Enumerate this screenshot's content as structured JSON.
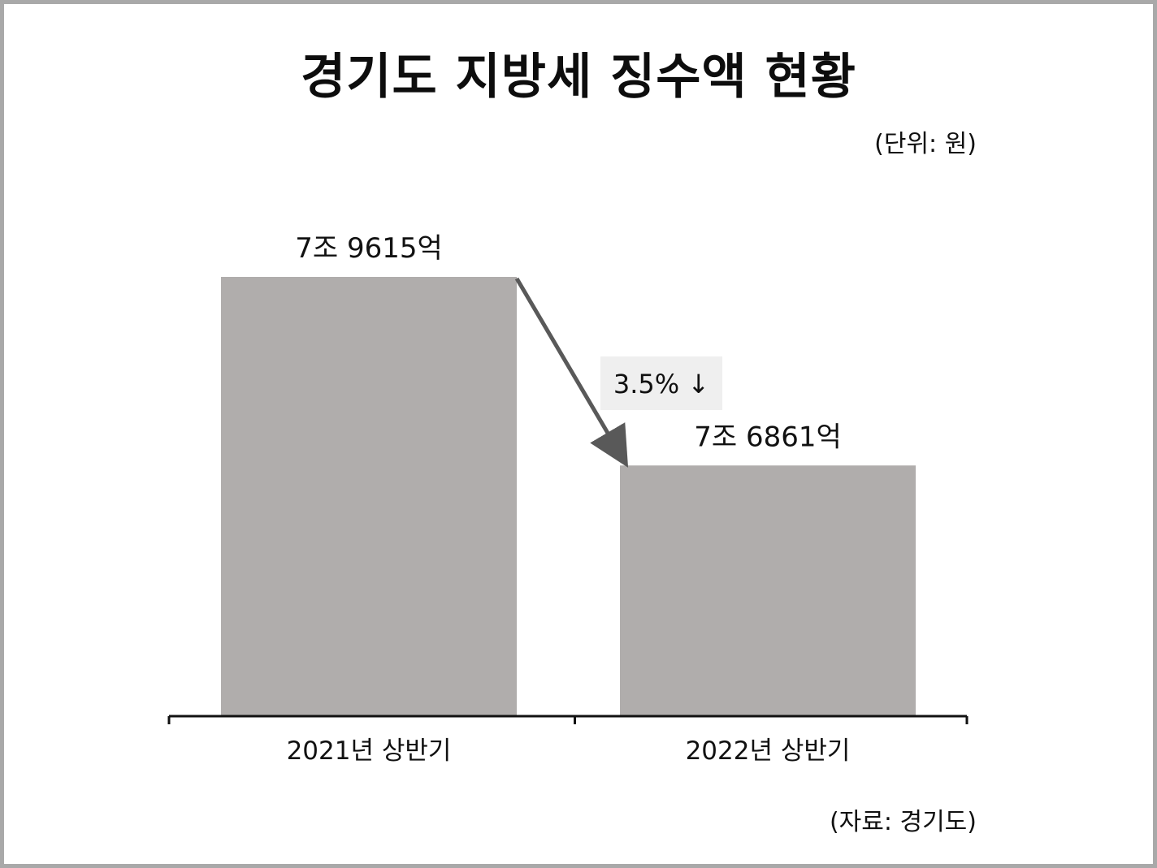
{
  "title": "경기도 지방세 징수액 현황",
  "unit_note": "(단위: 원)",
  "source_note": "(자료: 경기도)",
  "colors": {
    "bar": "#b0adac",
    "arrow": "#595959",
    "change_box": "#efefef",
    "axis": "#111111"
  },
  "chart_data": {
    "type": "bar",
    "title": "경기도 지방세 징수액 현황",
    "categories": [
      "2021년 상반기",
      "2022년 상반기"
    ],
    "values": [
      79615,
      76861
    ],
    "value_unit": "억 원",
    "data_labels": [
      "7조 9615억",
      "7조 6861억"
    ],
    "xlabel": "",
    "ylabel": "",
    "grid": false,
    "legend": "none",
    "annotation": {
      "text": "3.5% ↓",
      "from": "2021년 상반기",
      "to": "2022년 상반기"
    }
  }
}
